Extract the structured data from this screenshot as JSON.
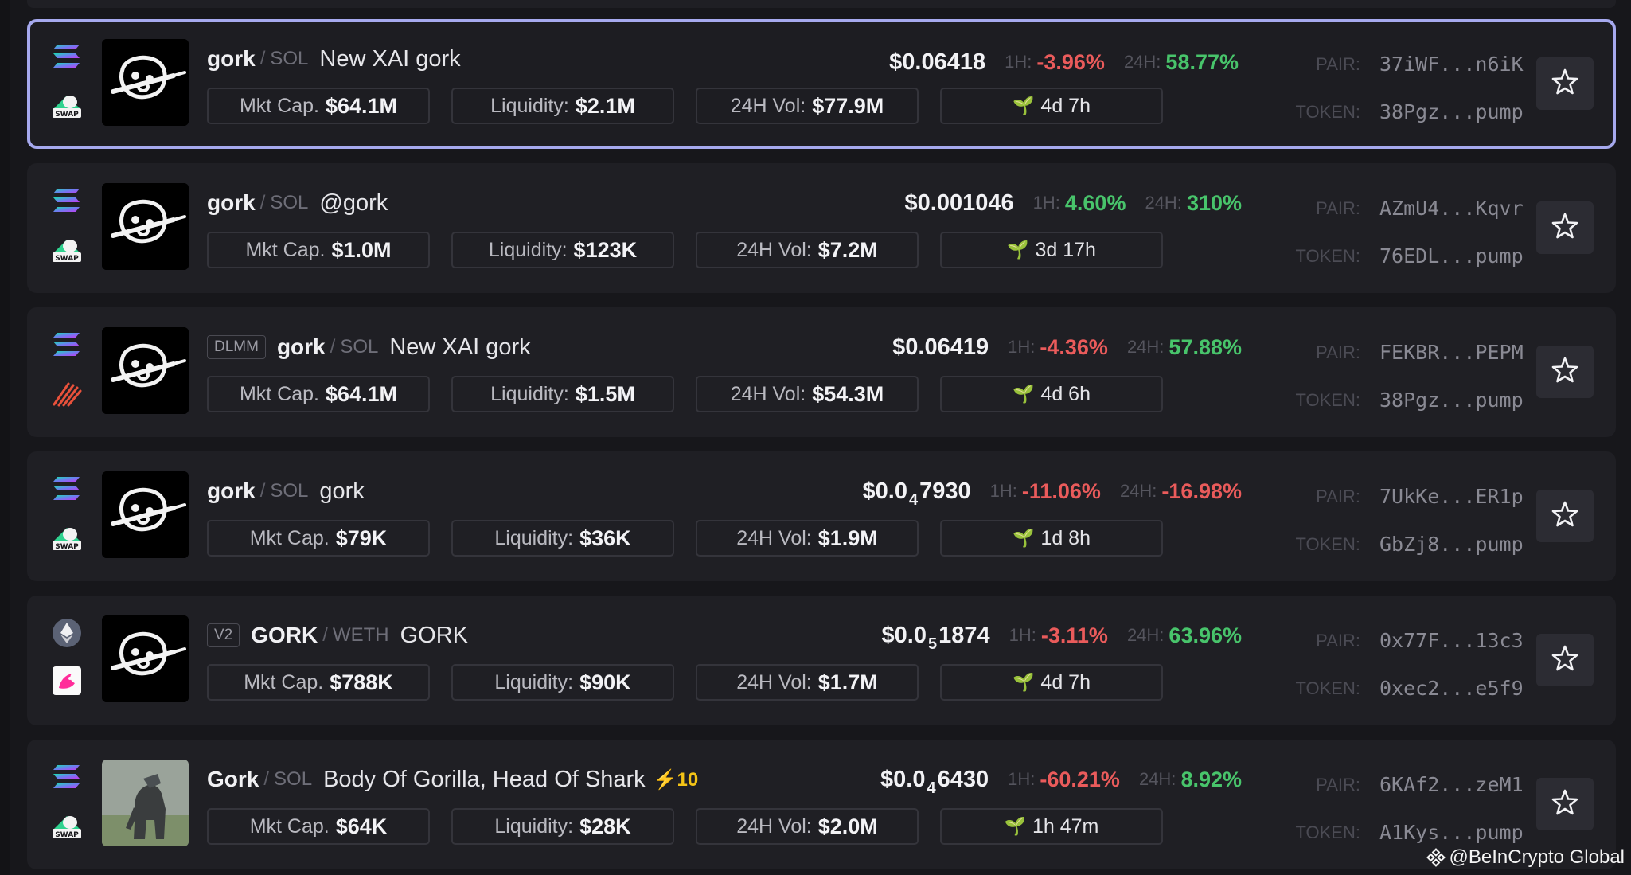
{
  "colors": {
    "background": "#17171b",
    "card": "#1f1f24",
    "selected_border": "#a6a9ee",
    "negative": "#ea5b5b",
    "positive": "#48c46b",
    "boost": "#f3c316"
  },
  "labels": {
    "h1": "1H:",
    "h24": "24H:",
    "mkt_cap": "Mkt Cap.",
    "liquidity": "Liquidity:",
    "vol": "24H Vol:",
    "pair": "PAIR:",
    "token": "TOKEN:"
  },
  "rows": [
    {
      "chain_icon": "solana-icon",
      "dex_icon": "swap-icon",
      "badge": "",
      "symbol": "gork",
      "quote": "SOL",
      "name": "New XAI gork",
      "boost": "",
      "price_prefix": "$0.06418",
      "price_sub": "",
      "price_suffix": "",
      "change_1h": "-3.96%",
      "change_24h": "58.77%",
      "mkt_cap": "$64.1M",
      "liquidity": "$2.1M",
      "volume": "$77.9M",
      "age": "4d 7h",
      "pair": "37iWF...n6iK",
      "token": "38Pgz...pump",
      "selected": true
    },
    {
      "chain_icon": "solana-icon",
      "dex_icon": "swap-icon",
      "badge": "",
      "symbol": "gork",
      "quote": "SOL",
      "name": "@gork",
      "boost": "",
      "price_prefix": "$0.001046",
      "price_sub": "",
      "price_suffix": "",
      "change_1h": "4.60%",
      "change_24h": "310%",
      "mkt_cap": "$1.0M",
      "liquidity": "$123K",
      "volume": "$7.2M",
      "age": "3d 17h",
      "pair": "AZmU4...Kqvr",
      "token": "76EDL...pump",
      "selected": false
    },
    {
      "chain_icon": "solana-icon",
      "dex_icon": "meteora-icon",
      "badge": "DLMM",
      "symbol": "gork",
      "quote": "SOL",
      "name": "New XAI gork",
      "boost": "",
      "price_prefix": "$0.06419",
      "price_sub": "",
      "price_suffix": "",
      "change_1h": "-4.36%",
      "change_24h": "57.88%",
      "mkt_cap": "$64.1M",
      "liquidity": "$1.5M",
      "volume": "$54.3M",
      "age": "4d 6h",
      "pair": "FEKBR...PEPM",
      "token": "38Pgz...pump",
      "selected": false
    },
    {
      "chain_icon": "solana-icon",
      "dex_icon": "swap-icon",
      "badge": "",
      "symbol": "gork",
      "quote": "SOL",
      "name": "gork",
      "boost": "",
      "price_prefix": "$0.0",
      "price_sub": "4",
      "price_suffix": "7930",
      "change_1h": "-11.06%",
      "change_24h": "-16.98%",
      "mkt_cap": "$79K",
      "liquidity": "$36K",
      "volume": "$1.9M",
      "age": "1d 8h",
      "pair": "7UkKe...ER1p",
      "token": "GbZj8...pump",
      "selected": false
    },
    {
      "chain_icon": "ethereum-icon",
      "dex_icon": "uniswap-icon",
      "badge": "V2",
      "symbol": "GORK",
      "quote": "WETH",
      "name": "GORK",
      "boost": "",
      "price_prefix": "$0.0",
      "price_sub": "5",
      "price_suffix": "1874",
      "change_1h": "-3.11%",
      "change_24h": "63.96%",
      "mkt_cap": "$788K",
      "liquidity": "$90K",
      "volume": "$1.7M",
      "age": "4d 7h",
      "pair": "0x77F...13c3",
      "token": "0xec2...e5f9",
      "selected": false
    },
    {
      "chain_icon": "solana-icon",
      "dex_icon": "swap-icon",
      "badge": "",
      "symbol": "Gork",
      "quote": "SOL",
      "name": "Body Of Gorilla, Head Of Shark",
      "boost": "10",
      "price_prefix": "$0.0",
      "price_sub": "4",
      "price_suffix": "6430",
      "change_1h": "-60.21%",
      "change_24h": "8.92%",
      "mkt_cap": "$64K",
      "liquidity": "$28K",
      "volume": "$2.0M",
      "age": "1h 47m",
      "pair": "6KAf2...zeM1",
      "token": "A1Kys...pump",
      "selected": false
    }
  ],
  "watermark": "@BeInCrypto Global"
}
